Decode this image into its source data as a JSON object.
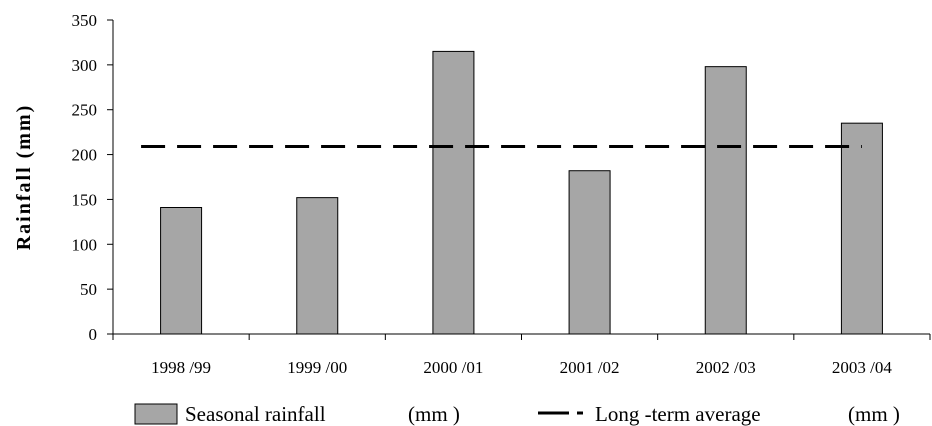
{
  "chart_data": {
    "type": "bar",
    "categories": [
      "1998 /99",
      "1999 /00",
      "2000 /01",
      "2001 /02",
      "2002 /03",
      "2003 /04"
    ],
    "series": [
      {
        "name": "Seasonal rainfall (mm )",
        "type": "bar",
        "values": [
          141,
          152,
          315,
          182,
          298,
          235
        ],
        "color": "#a6a6a6"
      },
      {
        "name": "Long -term average (mm )",
        "type": "line",
        "style": "dashed",
        "values": [
          209,
          209,
          209,
          209,
          209,
          209
        ],
        "color": "#000000"
      }
    ],
    "title": "",
    "xlabel": "",
    "ylabel": "Rainfall (mm)",
    "ylim": [
      0,
      350
    ],
    "yticks": [
      0,
      50,
      100,
      150,
      200,
      250,
      300,
      350
    ],
    "grid": false,
    "legend": {
      "position": "bottom",
      "bar_label": "Seasonal rainfall",
      "bar_unit": "(mm )",
      "line_label": "Long -term average",
      "line_unit": "(mm )"
    }
  }
}
